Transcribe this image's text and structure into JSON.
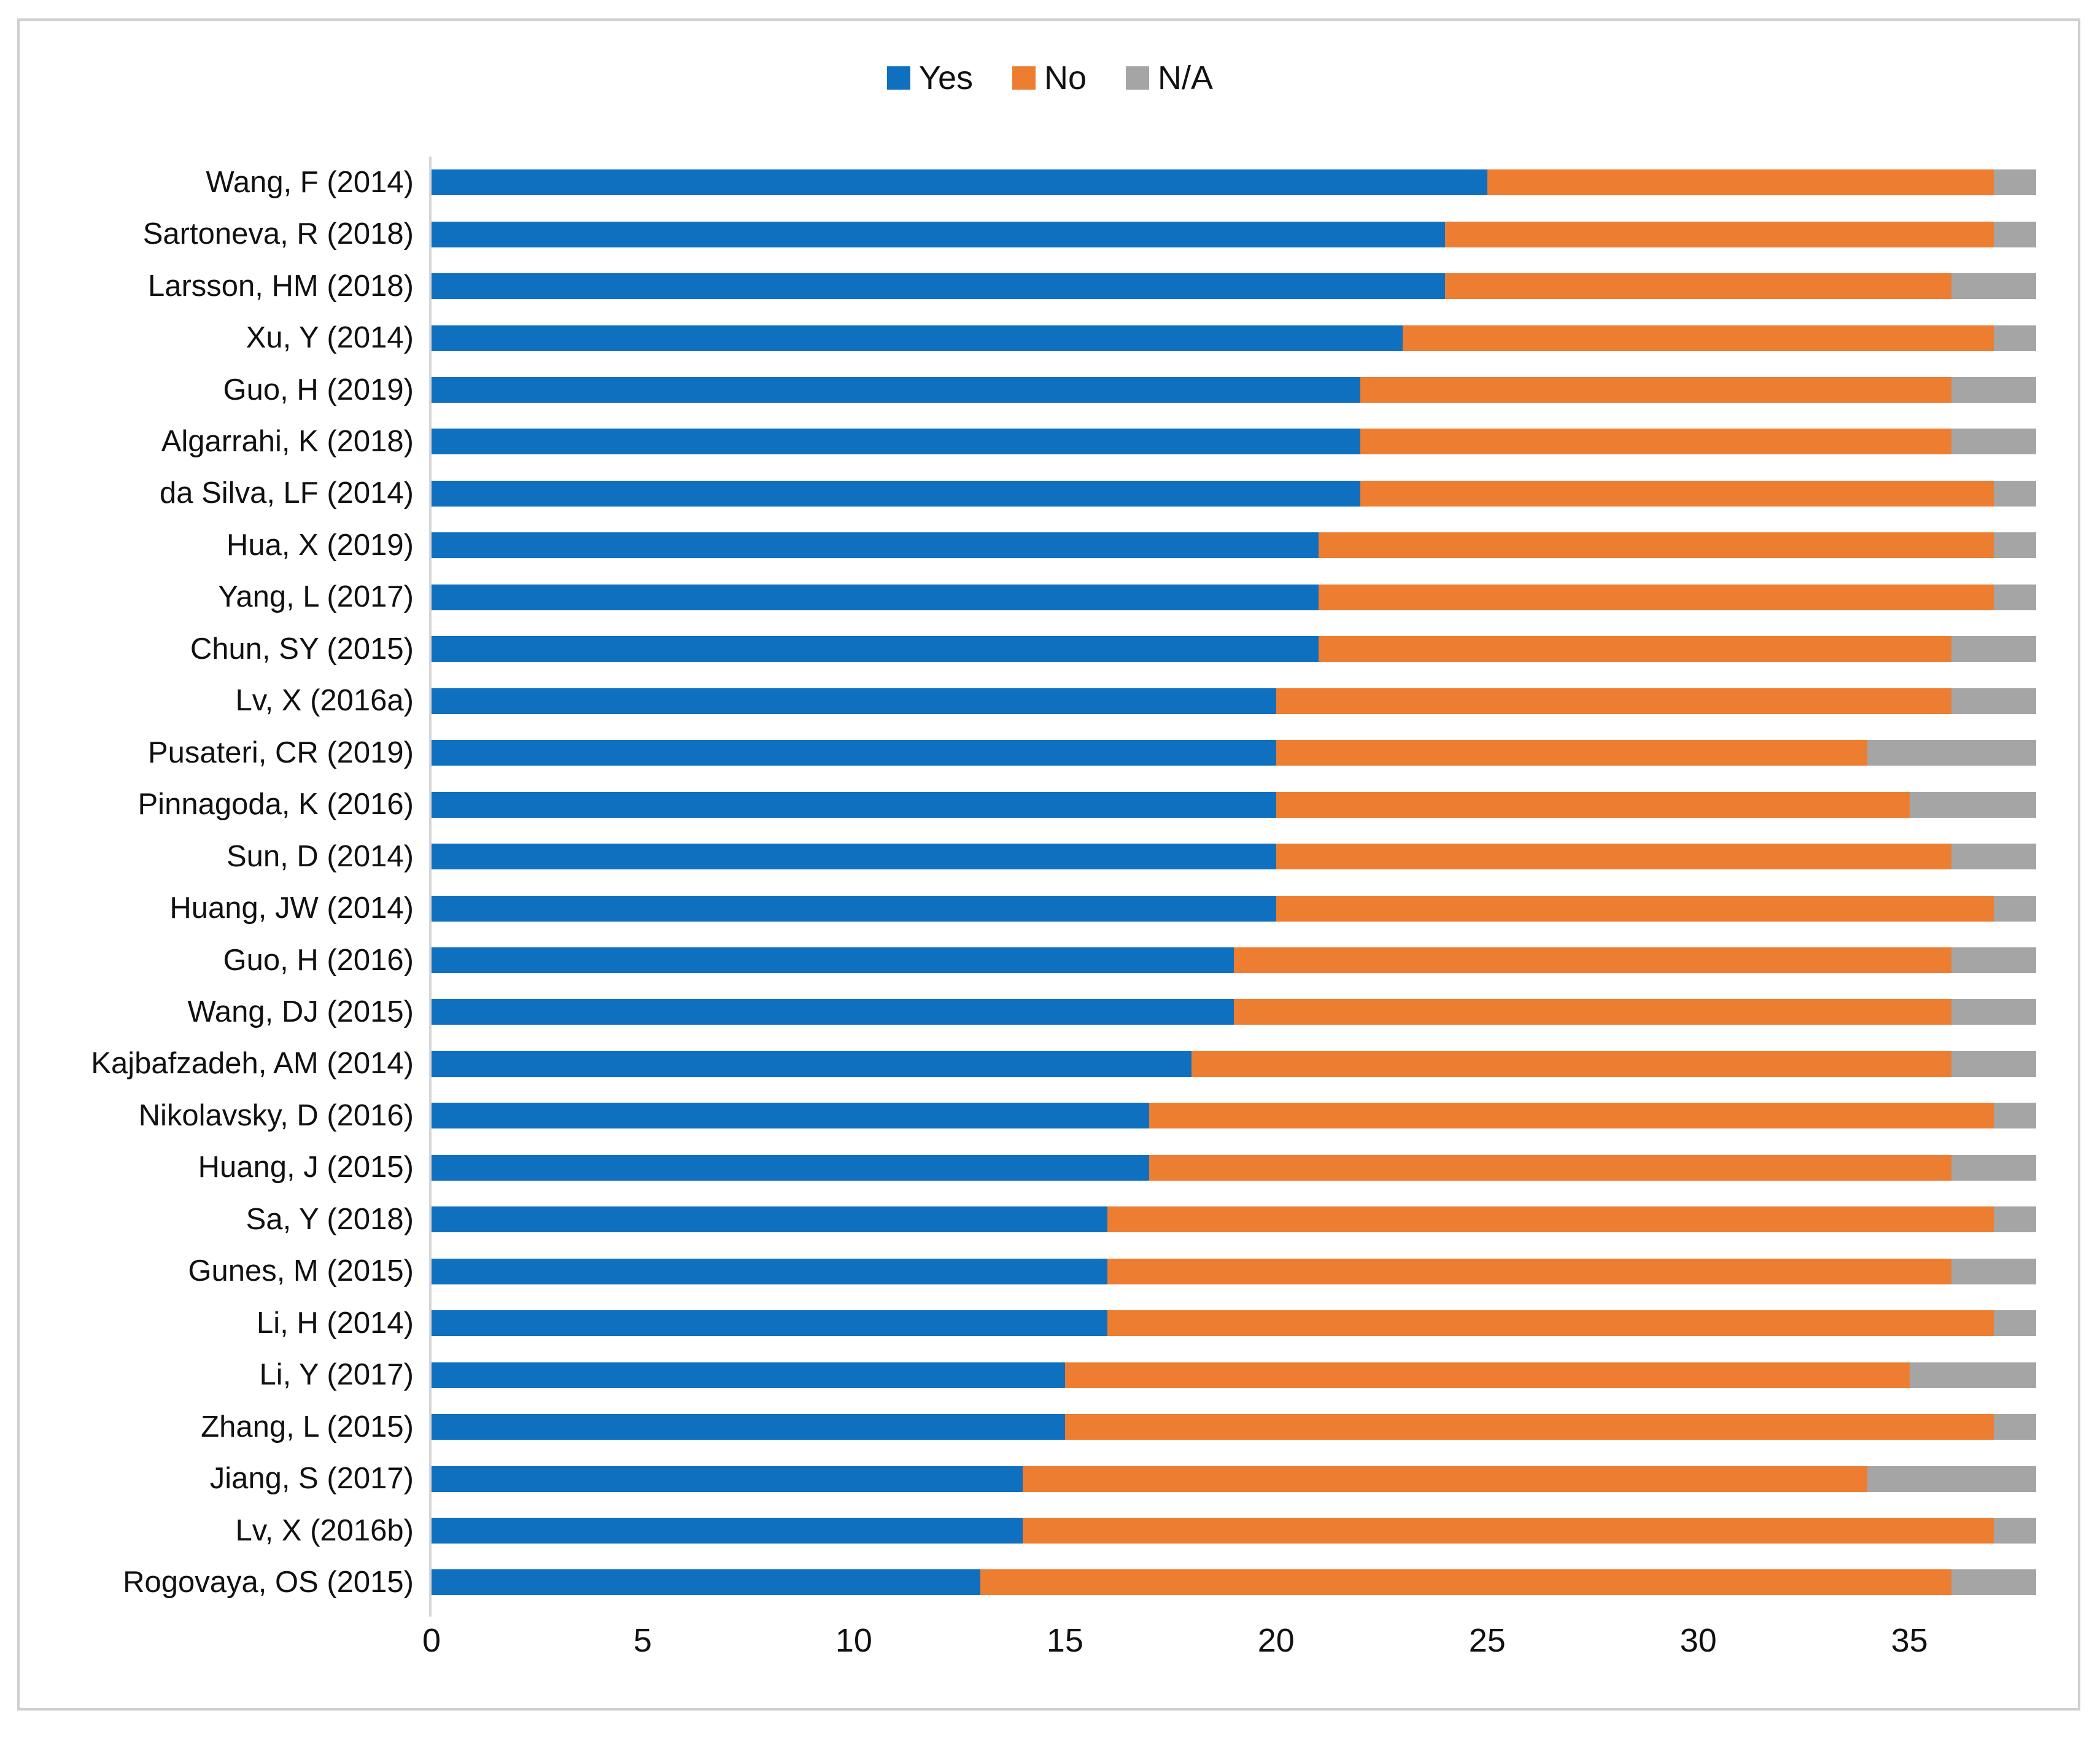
{
  "legend": {
    "items": [
      {
        "label": "Yes",
        "color": "#1070C0"
      },
      {
        "label": "No",
        "color": "#ED7D31"
      },
      {
        "label": "N/A",
        "color": "#A5A5A5"
      }
    ]
  },
  "axis": {
    "ticks": [
      0,
      5,
      10,
      15,
      20,
      25,
      30,
      35
    ],
    "max": 38
  },
  "chart_data": {
    "type": "bar",
    "orientation": "horizontal",
    "stacked": true,
    "title": "",
    "xlabel": "",
    "ylabel": "",
    "xlim": [
      0,
      38
    ],
    "grid": false,
    "legend_position": "top",
    "categories": [
      "Wang, F (2014)",
      "Sartoneva, R (2018)",
      "Larsson, HM (2018)",
      "Xu, Y (2014)",
      "Guo, H (2019)",
      "Algarrahi, K (2018)",
      "da Silva, LF (2014)",
      "Hua, X (2019)",
      "Yang, L (2017)",
      "Chun, SY (2015)",
      "Lv, X (2016a)",
      "Pusateri, CR (2019)",
      "Pinnagoda, K (2016)",
      "Sun, D (2014)",
      "Huang, JW (2014)",
      "Guo, H (2016)",
      "Wang, DJ (2015)",
      "Kajbafzadeh, AM (2014)",
      "Nikolavsky, D (2016)",
      "Huang, J (2015)",
      "Sa, Y (2018)",
      "Gunes, M (2015)",
      "Li, H (2014)",
      "Li, Y (2017)",
      "Zhang, L (2015)",
      "Jiang, S (2017)",
      "Lv, X (2016b)",
      "Rogovaya, OS (2015)"
    ],
    "series": [
      {
        "name": "Yes",
        "color": "#1070C0",
        "values": [
          25,
          24,
          24,
          23,
          22,
          22,
          22,
          21,
          21,
          21,
          20,
          20,
          20,
          20,
          20,
          19,
          19,
          18,
          17,
          17,
          16,
          16,
          16,
          15,
          15,
          14,
          14,
          13
        ]
      },
      {
        "name": "No",
        "color": "#ED7D31",
        "values": [
          12,
          13,
          12,
          14,
          14,
          14,
          15,
          16,
          16,
          15,
          16,
          14,
          15,
          16,
          17,
          17,
          17,
          18,
          20,
          19,
          21,
          20,
          21,
          20,
          22,
          20,
          23,
          23
        ]
      },
      {
        "name": "N/A",
        "color": "#A5A5A5",
        "values": [
          1,
          1,
          2,
          1,
          2,
          2,
          1,
          1,
          1,
          2,
          2,
          4,
          3,
          2,
          1,
          2,
          2,
          2,
          1,
          2,
          1,
          2,
          1,
          3,
          1,
          4,
          1,
          2
        ]
      }
    ]
  }
}
